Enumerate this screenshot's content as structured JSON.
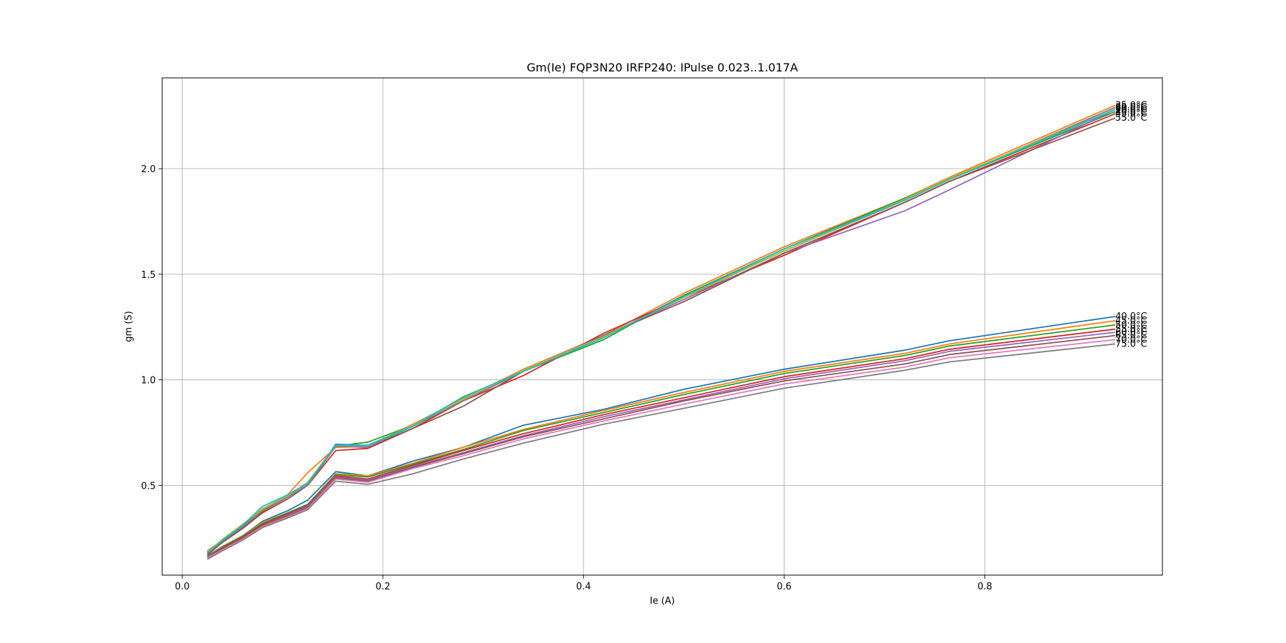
{
  "chart_data": {
    "type": "line",
    "title": "Gm(Ie) FQP3N20 IRFP240: IPulse 0.023..1.017A",
    "xlabel": "Ie (A)",
    "ylabel": "gm (S)",
    "xlim": [
      -0.02,
      0.977
    ],
    "ylim": [
      0.075,
      2.43
    ],
    "xticks": [
      0.0,
      0.2,
      0.4,
      0.6,
      0.8
    ],
    "xtick_labels": [
      "0.0",
      "0.2",
      "0.4",
      "0.6",
      "0.8"
    ],
    "yticks": [
      0.5,
      1.0,
      1.5,
      2.0
    ],
    "ytick_labels": [
      "0.5",
      "1.0",
      "1.5",
      "2.0"
    ],
    "grid": true,
    "legend": "none",
    "color_cycle": [
      "#1f77b4",
      "#ff7f0e",
      "#2ca02c",
      "#d62728",
      "#9467bd",
      "#8c564b",
      "#e377c2",
      "#7f7f7f",
      "#bcbd22",
      "#17becf"
    ],
    "x": [
      0.025,
      0.04,
      0.06,
      0.08,
      0.105,
      0.125,
      0.153,
      0.185,
      0.23,
      0.28,
      0.34,
      0.42,
      0.5,
      0.6,
      0.72,
      0.765,
      0.93
    ],
    "series": [
      {
        "group": "upper",
        "label": "30.0°C",
        "values": [
          0.19,
          0.235,
          0.3,
          0.37,
          0.445,
          0.5,
          0.695,
          0.69,
          0.785,
          0.91,
          1.04,
          1.2,
          1.4,
          1.62,
          1.86,
          1.95,
          2.29
        ]
      },
      {
        "group": "upper",
        "label": "35.0°C",
        "values": [
          0.19,
          0.24,
          0.31,
          0.385,
          0.455,
          0.56,
          0.68,
          0.685,
          0.79,
          0.91,
          1.05,
          1.21,
          1.41,
          1.63,
          1.86,
          1.96,
          2.3
        ]
      },
      {
        "group": "upper",
        "label": "40.0°C",
        "values": [
          0.185,
          0.235,
          0.305,
          0.38,
          0.445,
          0.51,
          0.685,
          0.705,
          0.785,
          0.915,
          1.04,
          1.19,
          1.4,
          1.62,
          1.86,
          1.95,
          2.27
        ]
      },
      {
        "group": "upper",
        "label": "45.0°C",
        "values": [
          0.17,
          0.23,
          0.3,
          0.375,
          0.44,
          0.5,
          0.665,
          0.675,
          0.77,
          0.9,
          1.02,
          1.22,
          1.39,
          1.59,
          1.84,
          1.94,
          2.26
        ]
      },
      {
        "group": "upper",
        "label": "50.0°C",
        "values": [
          0.185,
          0.235,
          0.3,
          0.37,
          0.44,
          0.505,
          0.69,
          0.685,
          0.78,
          0.905,
          1.045,
          1.21,
          1.38,
          1.6,
          1.8,
          1.9,
          2.28
        ]
      },
      {
        "group": "upper",
        "label": "55.0°C",
        "values": [
          0.175,
          0.23,
          0.295,
          0.37,
          0.435,
          0.5,
          0.69,
          0.68,
          0.77,
          0.875,
          1.04,
          1.21,
          1.37,
          1.6,
          1.84,
          1.94,
          2.24
        ]
      },
      {
        "group": "upper",
        "label": "60.0°C",
        "values": [
          0.185,
          0.24,
          0.305,
          0.38,
          0.44,
          0.51,
          0.69,
          0.685,
          0.785,
          0.905,
          1.045,
          1.205,
          1.39,
          1.61,
          1.85,
          1.95,
          2.29
        ]
      },
      {
        "group": "upper",
        "label": "65.0°C",
        "values": [
          0.18,
          0.235,
          0.305,
          0.38,
          0.445,
          0.5,
          0.685,
          0.68,
          0.78,
          0.9,
          1.04,
          1.2,
          1.395,
          1.61,
          1.85,
          1.95,
          2.29
        ]
      },
      {
        "group": "upper",
        "label": "70.0°C",
        "values": [
          0.18,
          0.245,
          0.315,
          0.39,
          0.45,
          0.515,
          0.69,
          0.69,
          0.785,
          0.91,
          1.045,
          1.205,
          1.39,
          1.61,
          1.855,
          1.955,
          2.28
        ]
      },
      {
        "group": "upper",
        "label": "75.0°C",
        "values": [
          0.18,
          0.24,
          0.31,
          0.4,
          0.455,
          0.51,
          0.69,
          0.69,
          0.78,
          0.92,
          1.04,
          1.2,
          1.395,
          1.62,
          1.85,
          1.95,
          2.28
        ]
      },
      {
        "group": "lower",
        "label": "40.0°C",
        "values": [
          0.165,
          0.21,
          0.26,
          0.33,
          0.38,
          0.43,
          0.565,
          0.545,
          0.615,
          0.68,
          0.785,
          0.86,
          0.955,
          1.05,
          1.14,
          1.185,
          1.3
        ]
      },
      {
        "group": "lower",
        "label": "45.0°C",
        "values": [
          0.165,
          0.21,
          0.26,
          0.325,
          0.37,
          0.41,
          0.555,
          0.545,
          0.605,
          0.68,
          0.765,
          0.855,
          0.94,
          1.04,
          1.125,
          1.17,
          1.28
        ]
      },
      {
        "group": "lower",
        "label": "50.0°C",
        "values": [
          0.165,
          0.21,
          0.26,
          0.32,
          0.37,
          0.41,
          0.55,
          0.54,
          0.6,
          0.67,
          0.76,
          0.845,
          0.93,
          1.03,
          1.115,
          1.16,
          1.26
        ]
      },
      {
        "group": "lower",
        "label": "55.0°C",
        "values": [
          0.16,
          0.205,
          0.255,
          0.315,
          0.365,
          0.405,
          0.545,
          0.53,
          0.595,
          0.665,
          0.745,
          0.835,
          0.915,
          1.015,
          1.1,
          1.145,
          1.24
        ]
      },
      {
        "group": "lower",
        "label": "60.0°C",
        "values": [
          0.16,
          0.2,
          0.25,
          0.31,
          0.36,
          0.4,
          0.54,
          0.525,
          0.59,
          0.655,
          0.735,
          0.825,
          0.905,
          1.005,
          1.09,
          1.135,
          1.225
        ]
      },
      {
        "group": "lower",
        "label": "65.0°C",
        "values": [
          0.155,
          0.2,
          0.25,
          0.31,
          0.355,
          0.395,
          0.535,
          0.52,
          0.585,
          0.65,
          0.73,
          0.815,
          0.9,
          0.995,
          1.075,
          1.12,
          1.21
        ]
      },
      {
        "group": "lower",
        "label": "70.0°C",
        "values": [
          0.155,
          0.195,
          0.245,
          0.305,
          0.35,
          0.39,
          0.53,
          0.515,
          0.58,
          0.64,
          0.72,
          0.805,
          0.885,
          0.98,
          1.06,
          1.105,
          1.19
        ]
      },
      {
        "group": "lower",
        "label": "75.0°C",
        "values": [
          0.15,
          0.19,
          0.24,
          0.3,
          0.345,
          0.385,
          0.52,
          0.505,
          0.555,
          0.625,
          0.7,
          0.79,
          0.865,
          0.96,
          1.045,
          1.085,
          1.17
        ]
      }
    ]
  }
}
